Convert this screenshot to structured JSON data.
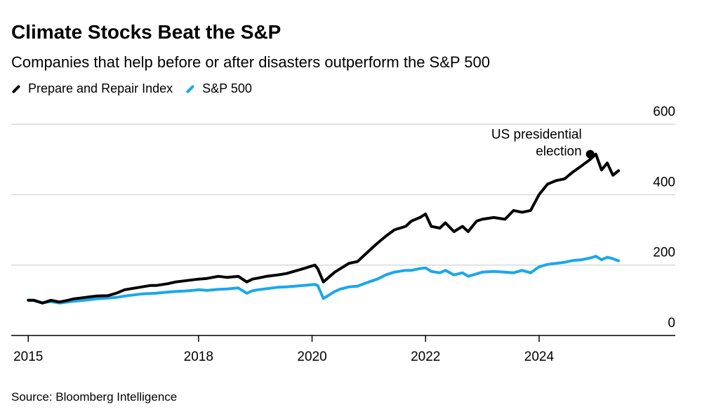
{
  "header": {
    "title": "Climate Stocks Beat the S&P",
    "subtitle": "Companies that help before or after disasters outperform the S&P 500"
  },
  "source": "Source: Bloomberg Intelligence",
  "colors": {
    "prepare_repair": "#000000",
    "sp500": "#1aa7ec",
    "grid": "#d9d9d9",
    "axis": "#000000"
  },
  "chart_data": {
    "type": "line",
    "title": "Climate Stocks Beat the S&P",
    "xlabel": "",
    "ylabel": "",
    "xlim": [
      2014.7,
      2026.4
    ],
    "ylim": [
      0,
      600
    ],
    "yticks": [
      0,
      200,
      400,
      600
    ],
    "xticks": [
      2015,
      2018,
      2020,
      2022,
      2024
    ],
    "grid": true,
    "legend": "top-left",
    "annotation": {
      "text_lines": [
        "US presidential",
        "election"
      ],
      "x": 2024.9,
      "y": 515,
      "series": "Prepare and Repair Index"
    },
    "series": [
      {
        "name": "Prepare and Repair Index",
        "color": "#000000",
        "x": [
          2015.0,
          2015.1,
          2015.25,
          2015.4,
          2015.55,
          2015.7,
          2015.8,
          2016.0,
          2016.2,
          2016.4,
          2016.55,
          2016.7,
          2016.85,
          2017.0,
          2017.15,
          2017.25,
          2017.45,
          2017.6,
          2017.75,
          2017.9,
          2018.0,
          2018.15,
          2018.35,
          2018.5,
          2018.7,
          2018.85,
          2018.95,
          2019.05,
          2019.2,
          2019.4,
          2019.55,
          2019.7,
          2019.85,
          2020.05,
          2020.1,
          2020.2,
          2020.4,
          2020.5,
          2020.65,
          2020.8,
          2021.0,
          2021.15,
          2021.3,
          2021.45,
          2021.65,
          2021.75,
          2021.9,
          2022.0,
          2022.1,
          2022.25,
          2022.35,
          2022.5,
          2022.65,
          2022.75,
          2022.9,
          2023.0,
          2023.2,
          2023.4,
          2023.55,
          2023.7,
          2023.85,
          2024.0,
          2024.15,
          2024.3,
          2024.45,
          2024.6,
          2024.75,
          2024.9,
          2025.0,
          2025.1,
          2025.2,
          2025.3,
          2025.4
        ],
        "values": [
          100,
          100,
          92,
          100,
          95,
          100,
          104,
          108,
          112,
          113,
          120,
          130,
          134,
          138,
          142,
          142,
          147,
          152,
          155,
          158,
          160,
          162,
          168,
          165,
          168,
          152,
          160,
          163,
          168,
          172,
          176,
          183,
          190,
          200,
          190,
          152,
          180,
          190,
          205,
          210,
          240,
          262,
          282,
          300,
          310,
          325,
          335,
          345,
          310,
          305,
          320,
          295,
          310,
          295,
          325,
          330,
          335,
          330,
          355,
          350,
          355,
          400,
          430,
          440,
          445,
          465,
          482,
          500,
          515,
          470,
          490,
          455,
          468
        ]
      },
      {
        "name": "S&P 500",
        "color": "#1aa7ec",
        "x": [
          2015.0,
          2015.1,
          2015.25,
          2015.4,
          2015.55,
          2015.7,
          2015.8,
          2016.0,
          2016.2,
          2016.4,
          2016.55,
          2016.7,
          2016.85,
          2017.0,
          2017.15,
          2017.25,
          2017.45,
          2017.6,
          2017.75,
          2017.9,
          2018.0,
          2018.15,
          2018.35,
          2018.5,
          2018.7,
          2018.85,
          2018.95,
          2019.05,
          2019.2,
          2019.4,
          2019.55,
          2019.7,
          2019.85,
          2020.05,
          2020.1,
          2020.2,
          2020.4,
          2020.5,
          2020.65,
          2020.8,
          2021.0,
          2021.15,
          2021.3,
          2021.45,
          2021.65,
          2021.75,
          2021.9,
          2022.0,
          2022.1,
          2022.25,
          2022.35,
          2022.5,
          2022.65,
          2022.75,
          2022.9,
          2023.0,
          2023.2,
          2023.4,
          2023.55,
          2023.7,
          2023.85,
          2024.0,
          2024.15,
          2024.3,
          2024.45,
          2024.6,
          2024.75,
          2024.9,
          2025.0,
          2025.1,
          2025.2,
          2025.3,
          2025.4
        ],
        "values": [
          100,
          99,
          93,
          96,
          92,
          95,
          97,
          100,
          104,
          106,
          108,
          112,
          115,
          118,
          119,
          120,
          123,
          125,
          126,
          128,
          130,
          128,
          131,
          132,
          135,
          120,
          127,
          130,
          133,
          137,
          138,
          140,
          142,
          145,
          142,
          105,
          125,
          132,
          138,
          140,
          152,
          160,
          172,
          180,
          185,
          185,
          190,
          192,
          182,
          178,
          185,
          172,
          178,
          168,
          175,
          180,
          182,
          180,
          178,
          185,
          178,
          195,
          202,
          205,
          208,
          213,
          215,
          220,
          225,
          215,
          222,
          218,
          212
        ]
      }
    ]
  }
}
